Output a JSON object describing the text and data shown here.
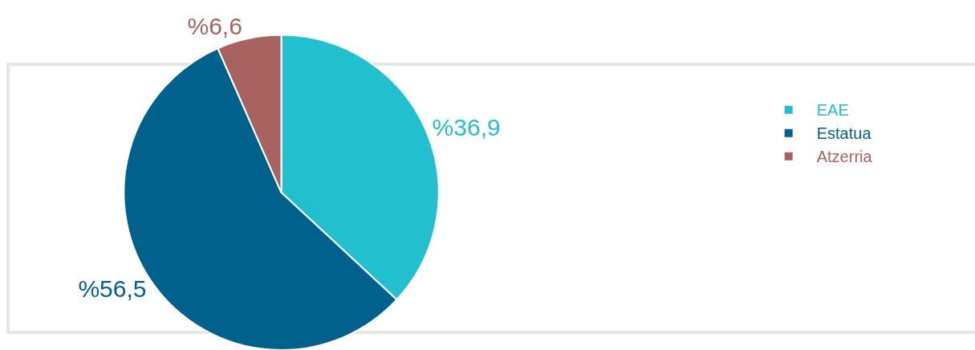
{
  "chart_data": {
    "type": "pie",
    "categories": [
      "EAE",
      "Estatua",
      "Atzerria"
    ],
    "values": [
      36.9,
      56.5,
      6.6
    ],
    "colors": [
      "#22bfcf",
      "#00628c",
      "#a8625f"
    ],
    "value_labels": [
      "%36,9",
      "%56,5",
      "%6,6"
    ],
    "legend": "right"
  }
}
